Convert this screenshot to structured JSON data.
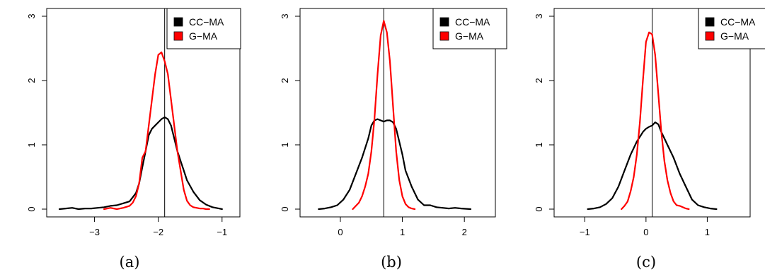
{
  "chart_data": [
    {
      "type": "line",
      "caption": "(a)",
      "xlim": [
        -3.75,
        -0.72
      ],
      "ylim": [
        0,
        3.05
      ],
      "xticks": [
        -3,
        -2,
        -1
      ],
      "xtick_labels": [
        "−3",
        "−2",
        "−1"
      ],
      "yticks": [
        0,
        1,
        2,
        3
      ],
      "ytick_labels": [
        "0",
        "1",
        "2",
        "3"
      ],
      "vline": -1.9,
      "legend_position": "top-right",
      "series": [
        {
          "name": "CC−MA",
          "color": "#000000",
          "x": [
            -3.55,
            -3.45,
            -3.35,
            -3.25,
            -3.15,
            -3.05,
            -2.95,
            -2.85,
            -2.75,
            -2.65,
            -2.55,
            -2.45,
            -2.35,
            -2.3,
            -2.25,
            -2.2,
            -2.15,
            -2.1,
            -2.05,
            -2.0,
            -1.95,
            -1.9,
            -1.85,
            -1.8,
            -1.75,
            -1.7,
            -1.65,
            -1.6,
            -1.55,
            -1.45,
            -1.35,
            -1.25,
            -1.15,
            -1.05,
            -1.0
          ],
          "y": [
            0.0,
            0.01,
            0.02,
            0.0,
            0.01,
            0.01,
            0.02,
            0.03,
            0.05,
            0.06,
            0.09,
            0.12,
            0.25,
            0.4,
            0.65,
            0.9,
            1.15,
            1.25,
            1.3,
            1.35,
            1.4,
            1.43,
            1.4,
            1.3,
            1.1,
            0.9,
            0.75,
            0.6,
            0.45,
            0.27,
            0.14,
            0.07,
            0.03,
            0.01,
            0.0
          ]
        },
        {
          "name": "G−MA",
          "color": "#ff0000",
          "x": [
            -2.85,
            -2.75,
            -2.65,
            -2.55,
            -2.45,
            -2.4,
            -2.35,
            -2.3,
            -2.25,
            -2.2,
            -2.15,
            -2.1,
            -2.05,
            -2.0,
            -1.95,
            -1.9,
            -1.85,
            -1.8,
            -1.75,
            -1.7,
            -1.65,
            -1.6,
            -1.55,
            -1.5,
            -1.45,
            -1.4,
            -1.35,
            -1.3,
            -1.25,
            -1.2
          ],
          "y": [
            0.0,
            0.02,
            0.0,
            0.02,
            0.05,
            0.1,
            0.2,
            0.4,
            0.8,
            0.9,
            1.3,
            1.7,
            2.1,
            2.4,
            2.44,
            2.3,
            2.1,
            1.7,
            1.3,
            0.9,
            0.6,
            0.3,
            0.13,
            0.06,
            0.03,
            0.02,
            0.01,
            0.01,
            0.0,
            0.0
          ]
        }
      ]
    },
    {
      "type": "line",
      "caption": "(b)",
      "xlim": [
        -0.65,
        2.5
      ],
      "ylim": [
        0,
        3.05
      ],
      "xticks": [
        0,
        1,
        2
      ],
      "xtick_labels": [
        "0",
        "1",
        "2"
      ],
      "yticks": [
        0,
        1,
        2,
        3
      ],
      "ytick_labels": [
        "0",
        "1",
        "2",
        "3"
      ],
      "vline": 0.7,
      "legend_position": "top-right",
      "series": [
        {
          "name": "CC−MA",
          "color": "#000000",
          "x": [
            -0.35,
            -0.25,
            -0.15,
            -0.05,
            0.05,
            0.15,
            0.25,
            0.35,
            0.45,
            0.5,
            0.55,
            0.6,
            0.65,
            0.7,
            0.75,
            0.8,
            0.85,
            0.9,
            0.95,
            1.0,
            1.05,
            1.15,
            1.25,
            1.35,
            1.45,
            1.55,
            1.65,
            1.75,
            1.85,
            1.95,
            2.1
          ],
          "y": [
            0.0,
            0.01,
            0.03,
            0.06,
            0.15,
            0.3,
            0.55,
            0.8,
            1.1,
            1.3,
            1.38,
            1.4,
            1.38,
            1.36,
            1.38,
            1.38,
            1.35,
            1.25,
            1.05,
            0.85,
            0.6,
            0.35,
            0.15,
            0.06,
            0.06,
            0.03,
            0.02,
            0.01,
            0.02,
            0.01,
            0.0
          ]
        },
        {
          "name": "G−MA",
          "color": "#ff0000",
          "x": [
            0.2,
            0.25,
            0.3,
            0.35,
            0.4,
            0.45,
            0.5,
            0.55,
            0.6,
            0.65,
            0.7,
            0.75,
            0.8,
            0.85,
            0.9,
            0.95,
            1.0,
            1.05,
            1.1,
            1.15,
            1.2
          ],
          "y": [
            0.0,
            0.05,
            0.1,
            0.2,
            0.35,
            0.55,
            0.9,
            1.4,
            2.1,
            2.7,
            2.93,
            2.75,
            2.3,
            1.6,
            0.9,
            0.45,
            0.2,
            0.08,
            0.03,
            0.01,
            0.0
          ]
        }
      ]
    },
    {
      "type": "line",
      "caption": "(c)",
      "xlim": [
        -1.5,
        1.7
      ],
      "ylim": [
        0,
        3.05
      ],
      "xticks": [
        -1,
        0,
        1
      ],
      "xtick_labels": [
        "−1",
        "0",
        "1"
      ],
      "yticks": [
        0,
        1,
        2,
        3
      ],
      "ytick_labels": [
        "0",
        "1",
        "2",
        "3"
      ],
      "vline": 0.1,
      "legend_position": "top-right",
      "series": [
        {
          "name": "CC−MA",
          "color": "#000000",
          "x": [
            -0.95,
            -0.85,
            -0.75,
            -0.65,
            -0.55,
            -0.45,
            -0.35,
            -0.25,
            -0.15,
            -0.05,
            0.0,
            0.05,
            0.1,
            0.15,
            0.2,
            0.25,
            0.3,
            0.35,
            0.45,
            0.55,
            0.65,
            0.75,
            0.85,
            0.95,
            1.05,
            1.15
          ],
          "y": [
            0.0,
            0.01,
            0.03,
            0.08,
            0.17,
            0.35,
            0.6,
            0.85,
            1.05,
            1.2,
            1.25,
            1.28,
            1.3,
            1.35,
            1.32,
            1.2,
            1.1,
            1.0,
            0.8,
            0.55,
            0.35,
            0.15,
            0.06,
            0.03,
            0.01,
            0.0
          ]
        },
        {
          "name": "G−MA",
          "color": "#ff0000",
          "x": [
            -0.4,
            -0.35,
            -0.3,
            -0.25,
            -0.2,
            -0.15,
            -0.1,
            -0.05,
            0.0,
            0.05,
            0.1,
            0.15,
            0.2,
            0.25,
            0.3,
            0.35,
            0.4,
            0.45,
            0.5,
            0.55,
            0.6,
            0.65,
            0.7
          ],
          "y": [
            0.0,
            0.05,
            0.12,
            0.28,
            0.5,
            0.85,
            1.35,
            2.0,
            2.6,
            2.75,
            2.72,
            2.4,
            1.8,
            1.2,
            0.75,
            0.45,
            0.25,
            0.12,
            0.06,
            0.05,
            0.03,
            0.01,
            0.0
          ]
        }
      ]
    }
  ]
}
